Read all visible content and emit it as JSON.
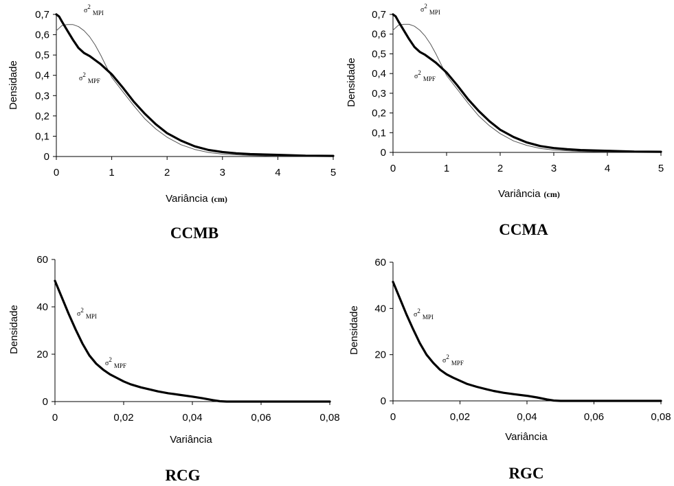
{
  "chart_data": [
    {
      "type": "line",
      "title": "CCMB",
      "xlabel": "Variância",
      "xlabel_unit": "(cm)",
      "ylabel": "Densidade",
      "xlim": [
        0,
        5
      ],
      "ylim": [
        0,
        0.7
      ],
      "xticks": [
        "0",
        "1",
        "2",
        "3",
        "4",
        "5"
      ],
      "yticks": [
        "0",
        "0,1",
        "0,2",
        "0,3",
        "0,4",
        "0,5",
        "0,6",
        "0,7"
      ],
      "grid": false,
      "annotations": [
        {
          "symbol": "σ",
          "sup": "2",
          "sub": "MPI",
          "series": "MPI"
        },
        {
          "symbol": "σ",
          "sup": "2",
          "sub": "MPF",
          "series": "MPF"
        }
      ],
      "series": [
        {
          "name": "σ²MPI",
          "x": [
            0,
            0.1,
            0.2,
            0.3,
            0.4,
            0.5,
            0.6,
            0.7,
            0.8,
            0.9,
            1.0,
            1.2,
            1.4,
            1.6,
            1.8,
            2.0,
            2.25,
            2.5,
            2.75,
            3.0,
            3.5,
            4.0,
            4.5,
            5.0
          ],
          "y": [
            0.62,
            0.645,
            0.65,
            0.65,
            0.64,
            0.62,
            0.59,
            0.55,
            0.5,
            0.445,
            0.39,
            0.32,
            0.25,
            0.185,
            0.135,
            0.095,
            0.058,
            0.035,
            0.02,
            0.012,
            0.005,
            0.002,
            0.001,
            0.0
          ],
          "color": "#555555",
          "line_weight": "thin"
        },
        {
          "name": "σ²MPF",
          "x": [
            0,
            0.05,
            0.1,
            0.2,
            0.3,
            0.4,
            0.5,
            0.6,
            0.7,
            0.8,
            0.9,
            1.0,
            1.2,
            1.4,
            1.6,
            1.8,
            2.0,
            2.25,
            2.5,
            2.75,
            3.0,
            3.25,
            3.5,
            4.0,
            4.5,
            5.0
          ],
          "y": [
            0.7,
            0.69,
            0.665,
            0.62,
            0.575,
            0.535,
            0.51,
            0.495,
            0.475,
            0.455,
            0.43,
            0.405,
            0.34,
            0.27,
            0.21,
            0.158,
            0.115,
            0.078,
            0.05,
            0.032,
            0.022,
            0.016,
            0.012,
            0.008,
            0.004,
            0.003
          ],
          "color": "#000000",
          "line_weight": "thick"
        }
      ]
    },
    {
      "type": "line",
      "title": "CCMA",
      "xlabel": "Variância",
      "xlabel_unit": "(cm)",
      "ylabel": "Densidade",
      "xlim": [
        0,
        5
      ],
      "ylim": [
        0,
        0.7
      ],
      "xticks": [
        "0",
        "1",
        "2",
        "3",
        "4",
        "5"
      ],
      "yticks": [
        "0",
        "0,1",
        "0,2",
        "0,3",
        "0,4",
        "0,5",
        "0,6",
        "0,7"
      ],
      "grid": false,
      "annotations": [
        {
          "symbol": "σ",
          "sup": "2",
          "sub": "MPI",
          "series": "MPI"
        },
        {
          "symbol": "σ",
          "sup": "2",
          "sub": "MPF",
          "series": "MPF"
        }
      ],
      "series": [
        {
          "name": "σ²MPI",
          "x": [
            0,
            0.1,
            0.2,
            0.3,
            0.4,
            0.5,
            0.6,
            0.7,
            0.8,
            0.9,
            1.0,
            1.2,
            1.4,
            1.6,
            1.8,
            2.0,
            2.25,
            2.5,
            2.75,
            3.0,
            3.5,
            4.0,
            4.5,
            5.0
          ],
          "y": [
            0.62,
            0.645,
            0.65,
            0.65,
            0.64,
            0.62,
            0.59,
            0.55,
            0.5,
            0.445,
            0.39,
            0.32,
            0.25,
            0.185,
            0.135,
            0.095,
            0.058,
            0.035,
            0.02,
            0.012,
            0.005,
            0.002,
            0.001,
            0.0
          ],
          "color": "#555555",
          "line_weight": "thin"
        },
        {
          "name": "σ²MPF",
          "x": [
            0,
            0.05,
            0.1,
            0.2,
            0.3,
            0.4,
            0.5,
            0.6,
            0.7,
            0.8,
            0.9,
            1.0,
            1.2,
            1.4,
            1.6,
            1.8,
            2.0,
            2.25,
            2.5,
            2.75,
            3.0,
            3.25,
            3.5,
            4.0,
            4.5,
            5.0
          ],
          "y": [
            0.7,
            0.69,
            0.665,
            0.62,
            0.575,
            0.535,
            0.51,
            0.495,
            0.475,
            0.455,
            0.43,
            0.405,
            0.34,
            0.27,
            0.21,
            0.158,
            0.115,
            0.078,
            0.05,
            0.032,
            0.022,
            0.016,
            0.012,
            0.008,
            0.004,
            0.003
          ],
          "color": "#000000",
          "line_weight": "thick"
        }
      ]
    },
    {
      "type": "line",
      "title": "RCG",
      "xlabel": "Variância",
      "xlabel_unit": "",
      "ylabel": "Densidade",
      "xlim": [
        0,
        0.08
      ],
      "ylim": [
        0,
        60
      ],
      "xticks": [
        "0",
        "0,02",
        "0,04",
        "0,06",
        "0,08"
      ],
      "yticks": [
        "0",
        "20",
        "40",
        "60"
      ],
      "grid": false,
      "annotations": [
        {
          "symbol": "σ",
          "sup": "2",
          "sub": "MPI",
          "series": "MPI"
        },
        {
          "symbol": "σ",
          "sup": "2",
          "sub": "MPF",
          "series": "MPF"
        }
      ],
      "series": [
        {
          "name": "σ²MPF",
          "x": [
            0,
            0.002,
            0.004,
            0.006,
            0.008,
            0.01,
            0.012,
            0.014,
            0.016,
            0.018,
            0.02,
            0.022,
            0.025,
            0.028,
            0.03,
            0.033,
            0.036,
            0.04,
            0.043,
            0.046,
            0.048,
            0.05,
            0.06,
            0.07,
            0.08
          ],
          "y": [
            51,
            44,
            37,
            30.5,
            24.5,
            19.5,
            16,
            13.5,
            11.5,
            10,
            8.5,
            7.3,
            6,
            5,
            4.3,
            3.5,
            2.9,
            2.1,
            1.4,
            0.6,
            0.15,
            0.0,
            0.0,
            0.0,
            0.0
          ],
          "color": "#000000",
          "line_weight": "thick"
        }
      ]
    },
    {
      "type": "line",
      "title": "RGC",
      "xlabel": "Variância",
      "xlabel_unit": "",
      "ylabel": "Densidade",
      "xlim": [
        0,
        0.08
      ],
      "ylim": [
        0,
        60
      ],
      "xticks": [
        "0",
        "0,02",
        "0,04",
        "0,06",
        "0,08"
      ],
      "yticks": [
        "0",
        "20",
        "40",
        "60"
      ],
      "grid": false,
      "annotations": [
        {
          "symbol": "σ",
          "sup": "2",
          "sub": "MPI",
          "series": "MPI"
        },
        {
          "symbol": "σ",
          "sup": "2",
          "sub": "MPF",
          "series": "MPF"
        }
      ],
      "series": [
        {
          "name": "σ²MPF",
          "x": [
            0,
            0.002,
            0.004,
            0.006,
            0.008,
            0.01,
            0.012,
            0.014,
            0.016,
            0.018,
            0.02,
            0.022,
            0.025,
            0.028,
            0.03,
            0.033,
            0.036,
            0.04,
            0.043,
            0.046,
            0.048,
            0.05,
            0.06,
            0.07,
            0.08
          ],
          "y": [
            51.5,
            44.5,
            37.5,
            31,
            25,
            20,
            16.5,
            13.5,
            11.5,
            10,
            8.7,
            7.4,
            6.1,
            5,
            4.3,
            3.5,
            2.9,
            2.2,
            1.5,
            0.6,
            0.15,
            0.0,
            0.0,
            0.0,
            0.0
          ],
          "color": "#000000",
          "line_weight": "thick"
        }
      ]
    }
  ]
}
